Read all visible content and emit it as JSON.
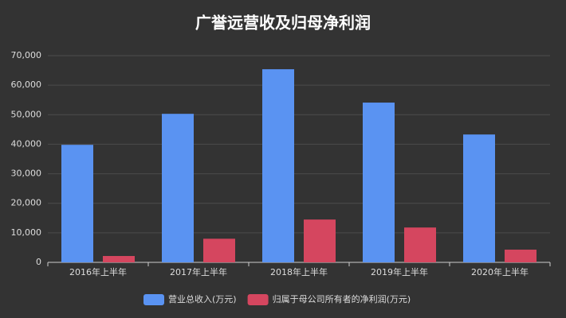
{
  "chart_data": {
    "type": "bar",
    "title": "广誉远营收及归母净利润",
    "categories": [
      "2016年上半年",
      "2017年上半年",
      "2018年上半年",
      "2019年上半年",
      "2020年上半年"
    ],
    "series": [
      {
        "name": "营业总收入(万元)",
        "color": "#5a93f2",
        "values": [
          39800,
          50300,
          65400,
          54100,
          43300
        ]
      },
      {
        "name": "归属于母公司所有者的净利润(万元)",
        "color": "#d5465f",
        "values": [
          2150,
          8000,
          14500,
          11800,
          4300
        ]
      }
    ],
    "ylim": [
      0,
      70000
    ],
    "yticks": [
      0,
      {
        "value": 10000,
        "label": "10,000"
      },
      {
        "value": 20000,
        "label": "20,000"
      },
      {
        "value": 30000,
        "label": "30,000"
      },
      {
        "value": 40000,
        "label": "40,000"
      },
      {
        "value": 50000,
        "label": "50,000"
      },
      {
        "value": 60000,
        "label": "60,000"
      },
      {
        "value": 70000,
        "label": "70,000"
      }
    ],
    "grid": true,
    "legend": "bottom"
  }
}
